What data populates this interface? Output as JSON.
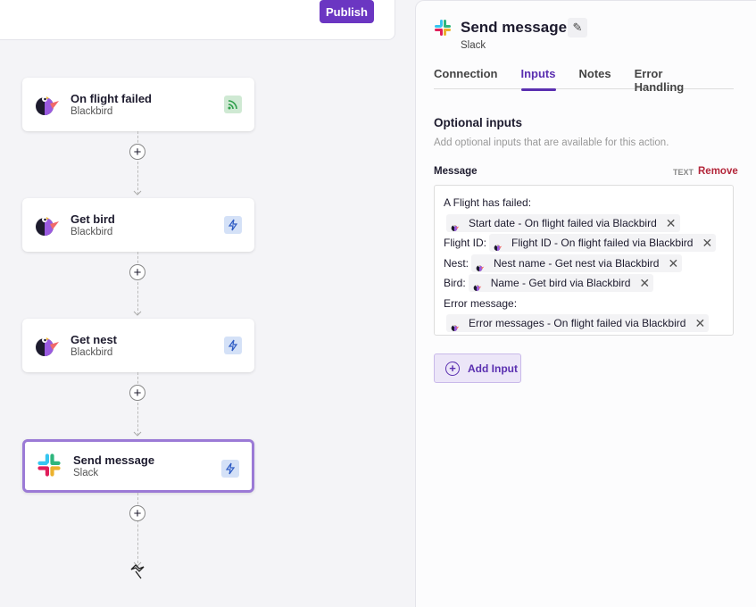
{
  "toolbar": {
    "publish_label": "Publish"
  },
  "nodes": [
    {
      "title": "On flight failed",
      "app": "Blackbird",
      "badge": "rss-icon",
      "badge_color": "#cfe9d3",
      "selected": false
    },
    {
      "title": "Get bird",
      "app": "Blackbird",
      "badge": "lightning-icon",
      "badge_color": "#d4e1f7",
      "selected": false
    },
    {
      "title": "Get nest",
      "app": "Blackbird",
      "badge": "lightning-icon",
      "badge_color": "#d4e1f7",
      "selected": false
    },
    {
      "title": "Send message",
      "app": "Slack",
      "badge": "lightning-icon",
      "badge_color": "#d4e1f7",
      "selected": true
    }
  ],
  "panel": {
    "title": "Send message",
    "app": "Slack",
    "tabs": [
      {
        "label": "Connection"
      },
      {
        "label": "Inputs",
        "active": true
      },
      {
        "label": "Notes"
      },
      {
        "label": "Error Handling"
      }
    ],
    "section_title": "Optional inputs",
    "section_desc": "Add optional inputs that are available for this action.",
    "field_label": "Message",
    "field_type": "TEXT",
    "remove_label": "Remove",
    "message_lines": [
      {
        "text": "A Flight has failed:",
        "chip": ""
      },
      {
        "text": "",
        "chip": "Start date - On flight failed via Blackbird"
      },
      {
        "text": "Flight ID:",
        "chip": "Flight ID - On flight failed via Blackbird"
      },
      {
        "text": "Nest:",
        "chip": "Nest name - Get nest via Blackbird"
      },
      {
        "text": "Bird:",
        "chip": "Name - Get bird via Blackbird"
      },
      {
        "text": "Error message:",
        "chip": ""
      },
      {
        "text": "",
        "chip": "Error messages - On flight failed via Blackbird"
      }
    ],
    "add_input_label": "Add Input"
  },
  "colors": {
    "accent": "#6b36c2",
    "remove": "#b3263a"
  }
}
